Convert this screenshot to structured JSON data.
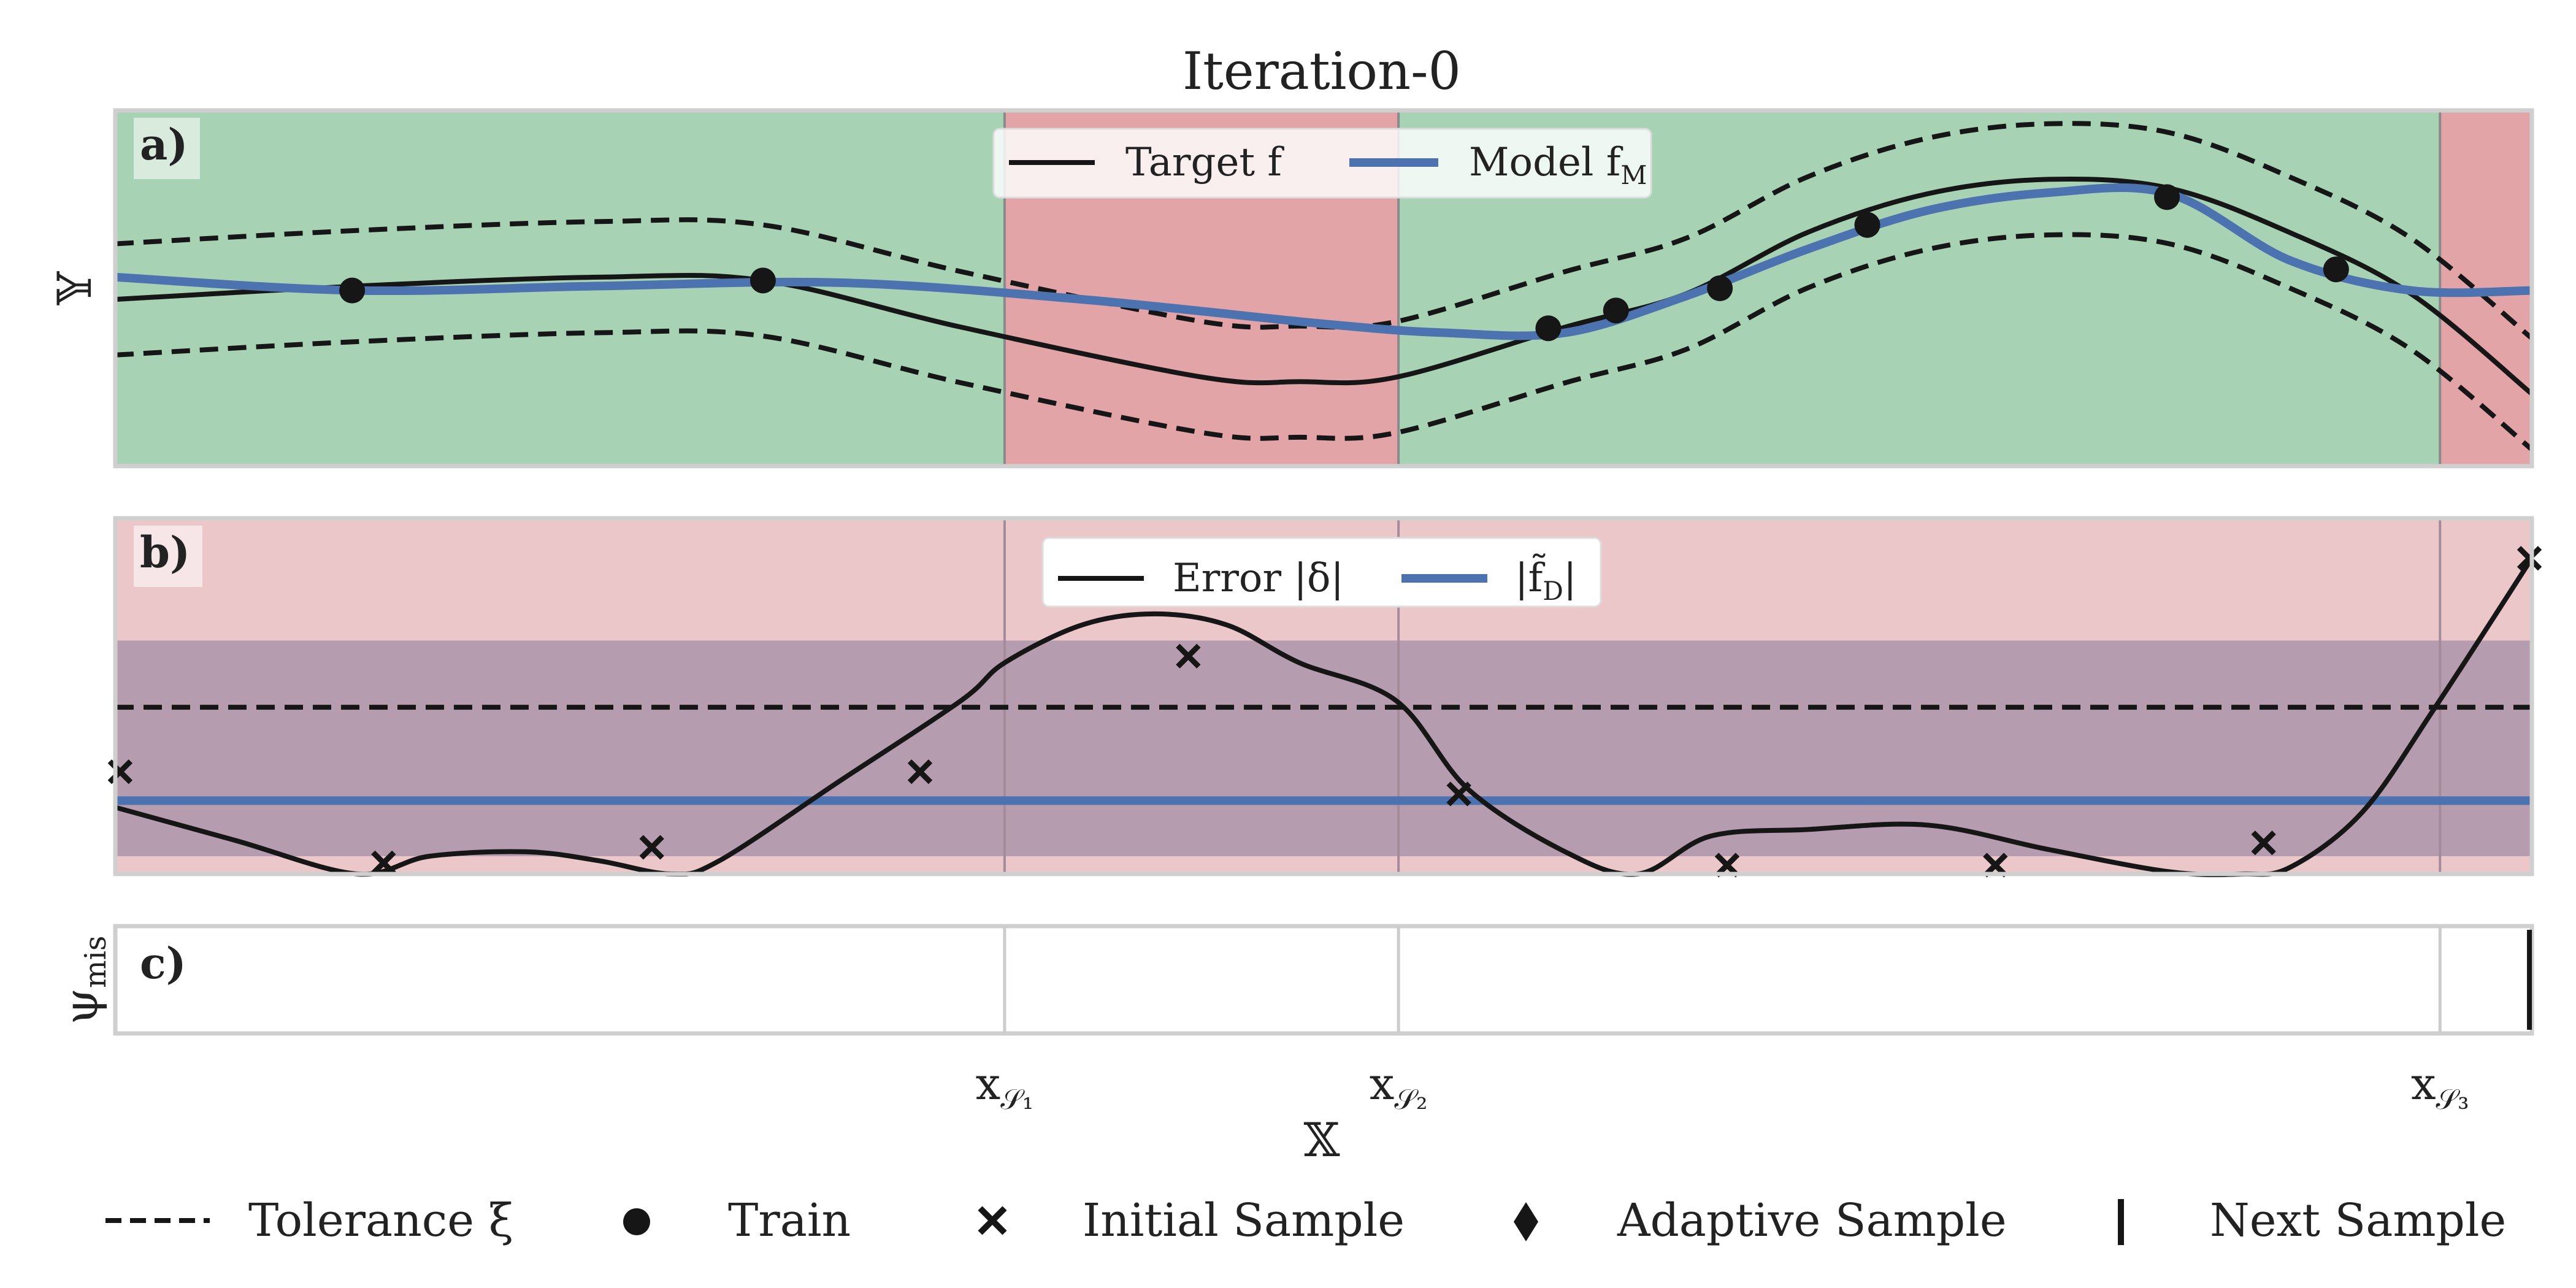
{
  "figure": {
    "title": "Iteration-0",
    "xlabel": "𝕏"
  },
  "colors": {
    "green": "#a8d2b4",
    "red": "#e2a4a7",
    "pink": "#ecc7c9",
    "purple": "#b69caf",
    "blue": "#4c72b0",
    "black": "#161616",
    "frame": "#cfcfcf",
    "divider": "#9a9a9a"
  },
  "chart_data": [
    {
      "panel": "a)",
      "type": "line",
      "ylabel": "𝕐",
      "xlim": [
        0,
        1
      ],
      "ylim": [
        -1.6,
        1.6
      ],
      "grid": false,
      "legend_placement": "top-center",
      "legend": [
        {
          "label": "Target f",
          "style": "black"
        },
        {
          "label": "Model f",
          "sub": "M",
          "style": "blue"
        }
      ],
      "region_colors": [
        "green",
        "red",
        "green",
        "red"
      ],
      "region_bounds": [
        0,
        0.368,
        0.531,
        0.962,
        1
      ],
      "series": [
        {
          "name": "Target f",
          "role": "target",
          "x": [
            0,
            0.1,
            0.2,
            0.268,
            0.35,
            0.45,
            0.49,
            0.53,
            0.6,
            0.65,
            0.7,
            0.75,
            0.8,
            0.85,
            0.9,
            0.95,
            1
          ],
          "y": [
            -0.1,
            0.02,
            0.1,
            0.07,
            -0.35,
            -0.8,
            -0.84,
            -0.8,
            -0.35,
            -0.05,
            0.5,
            0.85,
            0.98,
            0.9,
            0.5,
            -0.05,
            -0.95
          ]
        },
        {
          "name": "Model f_M",
          "role": "model",
          "x": [
            0,
            0.1,
            0.2,
            0.3,
            0.4,
            0.5,
            0.55,
            0.6,
            0.65,
            0.7,
            0.75,
            0.8,
            0.85,
            0.9,
            0.95,
            1
          ],
          "y": [
            0.1,
            -0.02,
            0.02,
            0.05,
            -0.1,
            -0.32,
            -0.4,
            -0.4,
            -0.07,
            0.35,
            0.7,
            0.86,
            0.85,
            0.25,
            -0.02,
            -0.02
          ]
        },
        {
          "name": "Tolerance upper",
          "role": "tolerance",
          "x": [
            0,
            0.1,
            0.2,
            0.268,
            0.35,
            0.45,
            0.49,
            0.53,
            0.6,
            0.65,
            0.7,
            0.75,
            0.8,
            0.85,
            0.9,
            0.95,
            1
          ],
          "y": [
            0.4,
            0.52,
            0.6,
            0.57,
            0.15,
            -0.3,
            -0.34,
            -0.3,
            0.15,
            0.45,
            1.0,
            1.35,
            1.48,
            1.4,
            1.0,
            0.45,
            -0.45
          ]
        },
        {
          "name": "Tolerance lower",
          "role": "tolerance",
          "x": [
            0,
            0.1,
            0.2,
            0.268,
            0.35,
            0.45,
            0.49,
            0.53,
            0.6,
            0.65,
            0.7,
            0.75,
            0.8,
            0.85,
            0.9,
            0.95,
            1
          ],
          "y": [
            -0.6,
            -0.48,
            -0.4,
            -0.43,
            -0.85,
            -1.3,
            -1.34,
            -1.3,
            -0.85,
            -0.55,
            0.0,
            0.35,
            0.48,
            0.4,
            0.0,
            -0.55,
            -1.45
          ]
        }
      ],
      "train_points": {
        "x": [
          0.098,
          0.268,
          0.593,
          0.621,
          0.664,
          0.725,
          0.849,
          0.919
        ],
        "y": [
          -0.02,
          0.07,
          -0.36,
          -0.2,
          0.0,
          0.57,
          0.82,
          0.17
        ]
      }
    },
    {
      "panel": "b)",
      "type": "line",
      "xlim": [
        0,
        1
      ],
      "ylim": [
        0,
        1.6
      ],
      "grid": false,
      "legend_placement": "top-center",
      "legend": [
        {
          "label": "Error |δ|",
          "style": "black"
        },
        {
          "label": "|f̃",
          "sub": "D",
          "tail": "|",
          "style": "blue"
        }
      ],
      "band": {
        "lower": 0.08,
        "upper": 1.05
      },
      "tolerance_level": 0.75,
      "fD_level": 0.33,
      "error_curve": {
        "x": [
          0,
          0.05,
          0.1,
          0.13,
          0.17,
          0.2,
          0.23,
          0.25,
          0.3,
          0.35,
          0.368,
          0.4,
          0.43,
          0.46,
          0.49,
          0.53,
          0.56,
          0.6,
          0.63,
          0.66,
          0.7,
          0.75,
          0.8,
          0.85,
          0.88,
          0.9,
          0.93,
          0.96,
          1
        ],
        "y": [
          0.3,
          0.15,
          0.0,
          0.08,
          0.1,
          0.06,
          0.0,
          0.06,
          0.42,
          0.78,
          0.95,
          1.12,
          1.17,
          1.12,
          0.95,
          0.78,
          0.38,
          0.1,
          0.0,
          0.17,
          0.2,
          0.22,
          0.11,
          0.01,
          0.0,
          0.03,
          0.28,
          0.75,
          1.42
        ]
      },
      "initial_samples": {
        "x": [
          0.002,
          0.111,
          0.222,
          0.333,
          0.444,
          0.556,
          0.667,
          0.778,
          0.889,
          0.999
        ],
        "y": [
          0.46,
          0.05,
          0.12,
          0.46,
          0.98,
          0.36,
          0.04,
          0.04,
          0.14,
          1.42
        ]
      }
    },
    {
      "panel": "c)",
      "type": "strip",
      "ylabel": "ψ",
      "ylabel_sub": "mis",
      "xlim": [
        0,
        1
      ],
      "dividers": [
        0.368,
        0.531,
        0.962
      ],
      "next_sample_x": 0.999,
      "xticks": [
        {
          "x": 0.368,
          "label": "x",
          "sub": "𝒮₁"
        },
        {
          "x": 0.531,
          "label": "x",
          "sub": "𝒮₂"
        },
        {
          "x": 0.962,
          "label": "x",
          "sub": "𝒮₃"
        }
      ]
    }
  ],
  "legend_bottom": [
    {
      "key": "tolerance",
      "label": "Tolerance ξ"
    },
    {
      "key": "train",
      "label": "Train"
    },
    {
      "key": "initial",
      "label": "Initial Sample"
    },
    {
      "key": "adaptive",
      "label": "Adaptive Sample"
    },
    {
      "key": "next",
      "label": "Next Sample"
    }
  ]
}
